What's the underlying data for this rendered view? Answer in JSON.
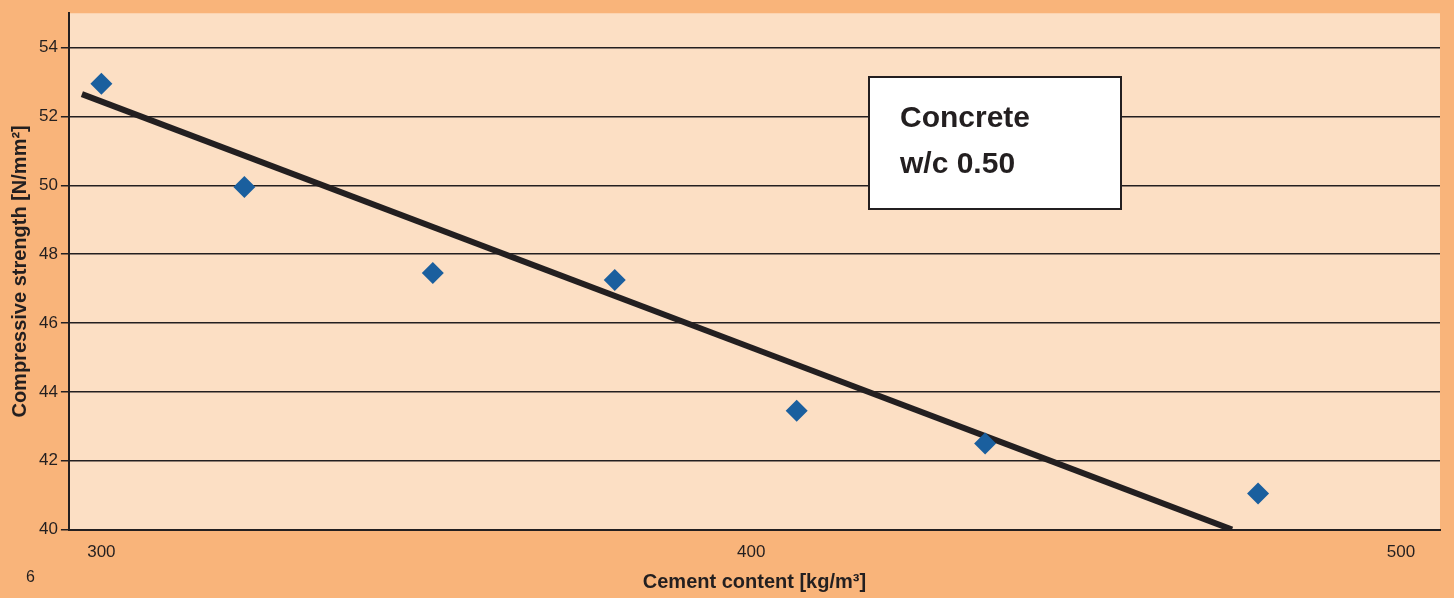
{
  "chart_data": {
    "type": "scatter",
    "xlabel": "Cement content [kg/m³]",
    "ylabel": "Compressive strength [N/mm²]",
    "x": [
      300,
      322,
      351,
      379,
      407,
      436,
      478
    ],
    "series": [
      {
        "color": "#1a5f9e",
        "marker": "diamond",
        "values": [
          52.95,
          49.95,
          47.45,
          47.25,
          43.45,
          42.5,
          41.05
        ]
      },
      {
        "type": "line",
        "color": "#231f20",
        "marker": "none",
        "x": [
          297,
          474
        ],
        "values": [
          52.65,
          40
        ]
      }
    ],
    "xlim": [
      295,
      506
    ],
    "xticks": [
      300,
      400,
      500
    ],
    "ylim": [
      40,
      55
    ],
    "yticks": [
      40,
      42,
      44,
      46,
      48,
      50,
      52,
      54
    ],
    "grid": "y",
    "legend": false,
    "annotations": [
      "Concrete\nw/c 0.50",
      "6"
    ]
  }
}
